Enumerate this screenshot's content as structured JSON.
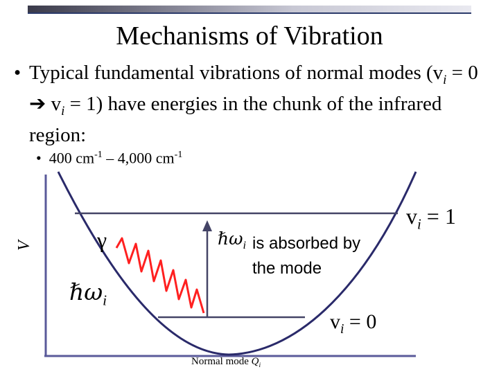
{
  "slide": {
    "title": "Mechanisms of Vibration",
    "bullet_symbol": "•",
    "bullet_text_a": "Typical fundamental vibrations of normal modes (v",
    "bullet_sub_1": "i",
    "bullet_text_b": " = 0 ",
    "arrow_symbol": "➔",
    "bullet_text_c": " v",
    "bullet_sub_2": "i",
    "bullet_text_d": " = 1) have energies in the chunk of the infrared region:",
    "sub_bullet_symbol": "•",
    "sub_text_a": "400 cm",
    "sub_sup_1": "-1",
    "sub_text_b": " – 4,000 cm",
    "sub_sup_2": "-1"
  },
  "diagram": {
    "y_axis_label": "V",
    "x_axis_label": "Normal mode ",
    "x_axis_symbol": "Q",
    "x_axis_sub": "i",
    "photon_symbol": "γ",
    "hw_symbol": "ℏω",
    "hw_sub": "i",
    "absorbed_line1": " is absorbed by",
    "absorbed_line2": "the mode",
    "upper_level_label": "v",
    "upper_level_sub": "i",
    "upper_level_value": " = 1",
    "lower_level_label": "v",
    "lower_level_sub": "i",
    "lower_level_value": " = 0",
    "colors": {
      "wave": "#ff2020",
      "axes": "#5a5a9a",
      "curve": "#2a2a6a",
      "levels": "#444466"
    }
  }
}
